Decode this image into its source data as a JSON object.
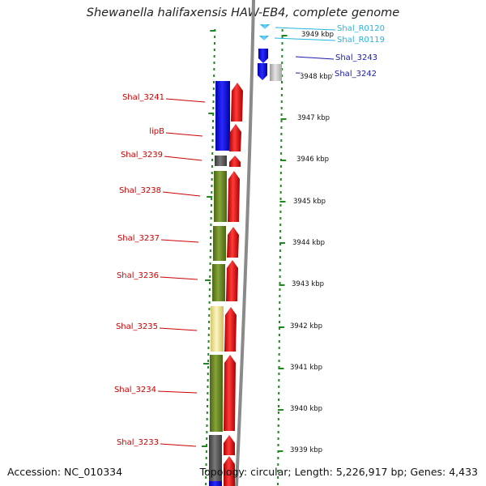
{
  "title": "Shewanella halifaxensis HAW-EB4, complete genome",
  "footer": {
    "accession": "Accession: NC_010334",
    "topology": "Topology: circular; Length: 5,226,917 bp; Genes: 4,433"
  },
  "colors": {
    "label_left": "#cc0000",
    "label_right_rna": "#22b5e0",
    "label_right_gene": "#1a1aa8",
    "ruler_ticks": "#1e8a1e",
    "backbone": "#909090"
  },
  "ruler": {
    "unit": "kbp",
    "labels": [
      "3949 kbp",
      "3948 kbp",
      "3947 kbp",
      "3946 kbp",
      "3945 kbp",
      "3944 kbp",
      "3943 kbp",
      "3942 kbp",
      "3941 kbp",
      "3940 kbp",
      "3939 kbp"
    ]
  },
  "features_left": [
    {
      "label": "Shal_3241",
      "color": "blue"
    },
    {
      "label": "lipB",
      "color": "blue"
    },
    {
      "label": "Shal_3239",
      "color": "dark-gray"
    },
    {
      "label": "Shal_3238",
      "color": "olive"
    },
    {
      "label": "Shal_3237",
      "color": "olive"
    },
    {
      "label": "Shal_3236",
      "color": "olive"
    },
    {
      "label": "Shal_3235",
      "color": "pale-yellow"
    },
    {
      "label": "Shal_3234",
      "color": "olive"
    },
    {
      "label": "Shal_3233",
      "color": "dark-gray"
    }
  ],
  "features_right": [
    {
      "label": "Shal_R0120",
      "type": "tRNA"
    },
    {
      "label": "Shal_R0119",
      "type": "tRNA"
    },
    {
      "label": "Shal_3243",
      "type": "gene"
    },
    {
      "label": "Shal_3242",
      "type": "gene"
    }
  ],
  "category_colors": {
    "blue": "#1414e6",
    "dark-gray": "#5c5c5c",
    "olive": "#6b8a22",
    "pale-yellow": "#f2e69a",
    "light-gray": "#c4c4c4",
    "cds": "#ee1111",
    "rna": "#33bbee"
  }
}
